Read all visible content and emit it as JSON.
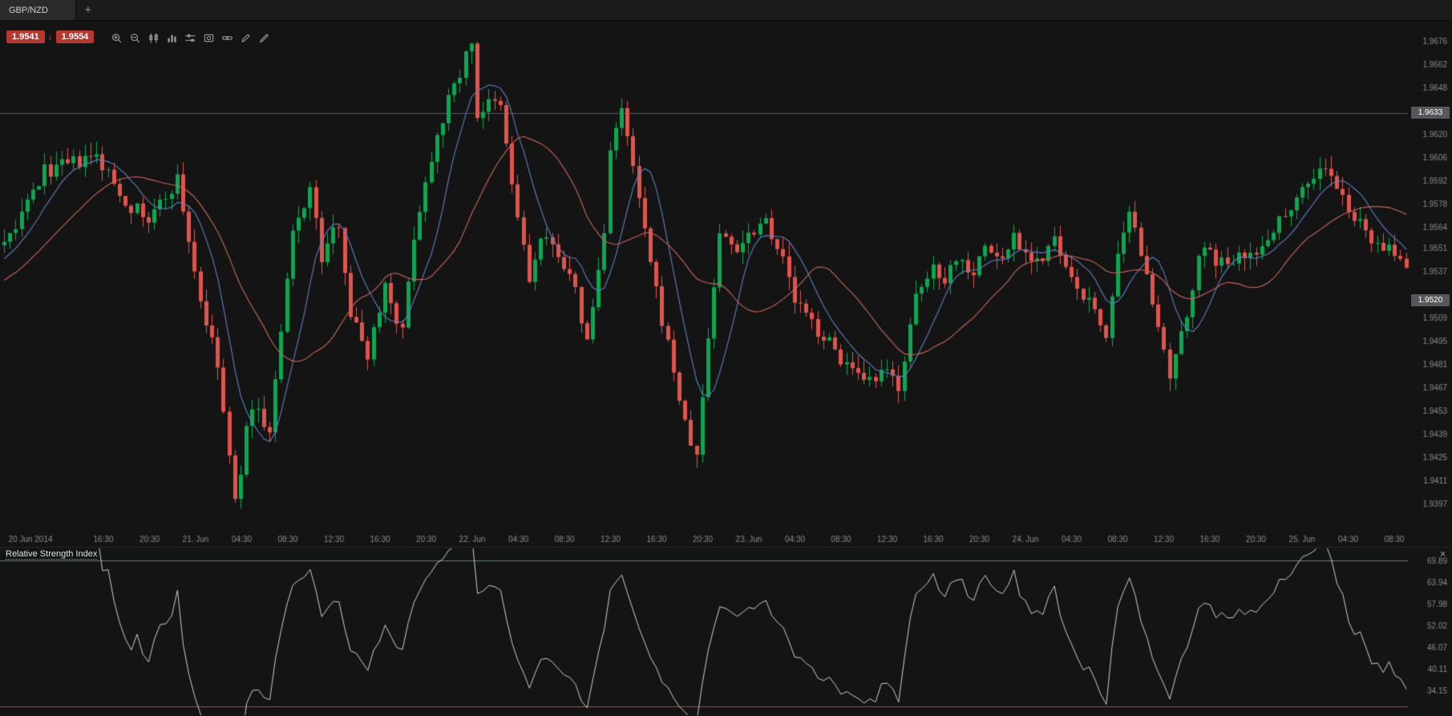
{
  "window": {
    "bg": "#141414",
    "axis_text_color": "#8a8a8a"
  },
  "tabbar": {
    "active_tab": "GBP/NZD",
    "new_tab_label": "+"
  },
  "quote": {
    "bid": "1.9541",
    "ask": "1.9554",
    "direction_glyph": "↓",
    "badge_color": "#b5372e"
  },
  "toolbar": {
    "icons": [
      "zoom-in",
      "zoom-out",
      "candlestick-style",
      "histogram",
      "indicator-settings",
      "snapshot",
      "link-charts",
      "draw",
      "annotate"
    ]
  },
  "main_chart": {
    "price_line_label": "1.9633",
    "last_price_label": "1.9520",
    "badge_bg": "#56585b"
  },
  "rsi_panel": {
    "title": "Relative Strength Index",
    "close_label": "×"
  },
  "chart_data": [
    {
      "type": "candlestick",
      "symbol": "GBP/NZD",
      "timeframe": "30-minute",
      "candle_count": 244,
      "seed": 7,
      "grid": false,
      "price_axis": {
        "top": 1.9689,
        "bottom": 1.9381,
        "tick_labels": [
          "1.9676",
          "1.9662",
          "1.9648",
          "1.9620",
          "1.9606",
          "1.9592",
          "1.9578",
          "1.9564",
          "1.9551",
          "1.9537",
          "1.9509",
          "1.9495",
          "1.9481",
          "1.9467",
          "1.9453",
          "1.9439",
          "1.9425",
          "1.9411",
          "1.9397"
        ]
      },
      "time_axis": {
        "tick_labels": [
          "20 Jun 2014",
          "16:30",
          "20:30",
          "21. Jun",
          "04:30",
          "08:30",
          "12:30",
          "16:30",
          "20:30",
          "22. Jun",
          "04:30",
          "08:30",
          "12:30",
          "16:30",
          "20:30",
          "23. Jun",
          "04:30",
          "08:30",
          "12:30",
          "16:30",
          "20:30",
          "24. Jun",
          "04:30",
          "08:30",
          "12:30",
          "16:30",
          "20:30",
          "25. Jun",
          "04:30",
          "08:30"
        ]
      },
      "horizontal_line_price": 1.9633,
      "marked_price": 1.952,
      "colors": {
        "up": "#0ca750",
        "down": "#e0544c",
        "ma_fast": "#5f7fc2",
        "ma_slow": "#c9665c",
        "price_line": "#56585a"
      },
      "overlays": [
        {
          "name": "sma-fast",
          "period": 8
        },
        {
          "name": "sma-slow",
          "period": 20
        }
      ],
      "close_path_waypoints": [
        [
          0,
          1.9551
        ],
        [
          7,
          1.9598
        ],
        [
          16,
          1.9606
        ],
        [
          21,
          1.958
        ],
        [
          25,
          1.9568
        ],
        [
          30,
          1.9593
        ],
        [
          34,
          1.952
        ],
        [
          37,
          1.948
        ],
        [
          40,
          1.9397
        ],
        [
          42,
          1.944
        ],
        [
          43,
          1.9458
        ],
        [
          46,
          1.944
        ],
        [
          50,
          1.956
        ],
        [
          53,
          1.9588
        ],
        [
          55,
          1.9545
        ],
        [
          58,
          1.9568
        ],
        [
          60,
          1.9512
        ],
        [
          63,
          1.9488
        ],
        [
          66,
          1.953
        ],
        [
          69,
          1.95
        ],
        [
          71,
          1.956
        ],
        [
          75,
          1.9622
        ],
        [
          77,
          1.964
        ],
        [
          81,
          1.9676
        ],
        [
          82,
          1.9632
        ],
        [
          84,
          1.9638
        ],
        [
          86,
          1.9636
        ],
        [
          88,
          1.959
        ],
        [
          91,
          1.9532
        ],
        [
          93,
          1.9556
        ],
        [
          96,
          1.955
        ],
        [
          99,
          1.9524
        ],
        [
          101,
          1.9494
        ],
        [
          104,
          1.956
        ],
        [
          105,
          1.9614
        ],
        [
          107,
          1.9633
        ],
        [
          109,
          1.96
        ],
        [
          111,
          1.956
        ],
        [
          113,
          1.9524
        ],
        [
          116,
          1.9478
        ],
        [
          118,
          1.9444
        ],
        [
          120,
          1.9425
        ],
        [
          122,
          1.9498
        ],
        [
          124,
          1.956
        ],
        [
          127,
          1.9552
        ],
        [
          130,
          1.9564
        ],
        [
          132,
          1.957
        ],
        [
          135,
          1.9544
        ],
        [
          137,
          1.952
        ],
        [
          140,
          1.9506
        ],
        [
          143,
          1.9494
        ],
        [
          146,
          1.9481
        ],
        [
          149,
          1.9468
        ],
        [
          153,
          1.9476
        ],
        [
          155,
          1.9469
        ],
        [
          158,
          1.952
        ],
        [
          161,
          1.954
        ],
        [
          163,
          1.9534
        ],
        [
          165,
          1.9546
        ],
        [
          168,
          1.9538
        ],
        [
          170,
          1.9552
        ],
        [
          173,
          1.9544
        ],
        [
          175,
          1.956
        ],
        [
          177,
          1.9549
        ],
        [
          180,
          1.9544
        ],
        [
          182,
          1.9556
        ],
        [
          185,
          1.953
        ],
        [
          187,
          1.9524
        ],
        [
          191,
          1.95
        ],
        [
          193,
          1.9544
        ],
        [
          195,
          1.957
        ],
        [
          198,
          1.954
        ],
        [
          200,
          1.95
        ],
        [
          202,
          1.9472
        ],
        [
          205,
          1.951
        ],
        [
          207,
          1.955
        ],
        [
          210,
          1.9545
        ],
        [
          212,
          1.954
        ],
        [
          214,
          1.9552
        ],
        [
          217,
          1.9546
        ],
        [
          219,
          1.956
        ],
        [
          222,
          1.9572
        ],
        [
          224,
          1.9584
        ],
        [
          227,
          1.9595
        ],
        [
          229,
          1.9601
        ],
        [
          231,
          1.9586
        ],
        [
          234,
          1.957
        ],
        [
          236,
          1.956
        ],
        [
          238,
          1.9556
        ],
        [
          241,
          1.9546
        ],
        [
          243,
          1.9541
        ]
      ]
    },
    {
      "type": "line",
      "name": "Relative Strength Index",
      "period": 14,
      "levels": {
        "overbought": 70,
        "oversold": 30
      },
      "y_tick_labels": [
        "69.89",
        "63.94",
        "57.98",
        "52.02",
        "46.07",
        "40.11",
        "34.15"
      ],
      "colors": {
        "line": "#c9ced1",
        "overbought": "#2d9c5c",
        "oversold": "#b8443c"
      }
    }
  ]
}
